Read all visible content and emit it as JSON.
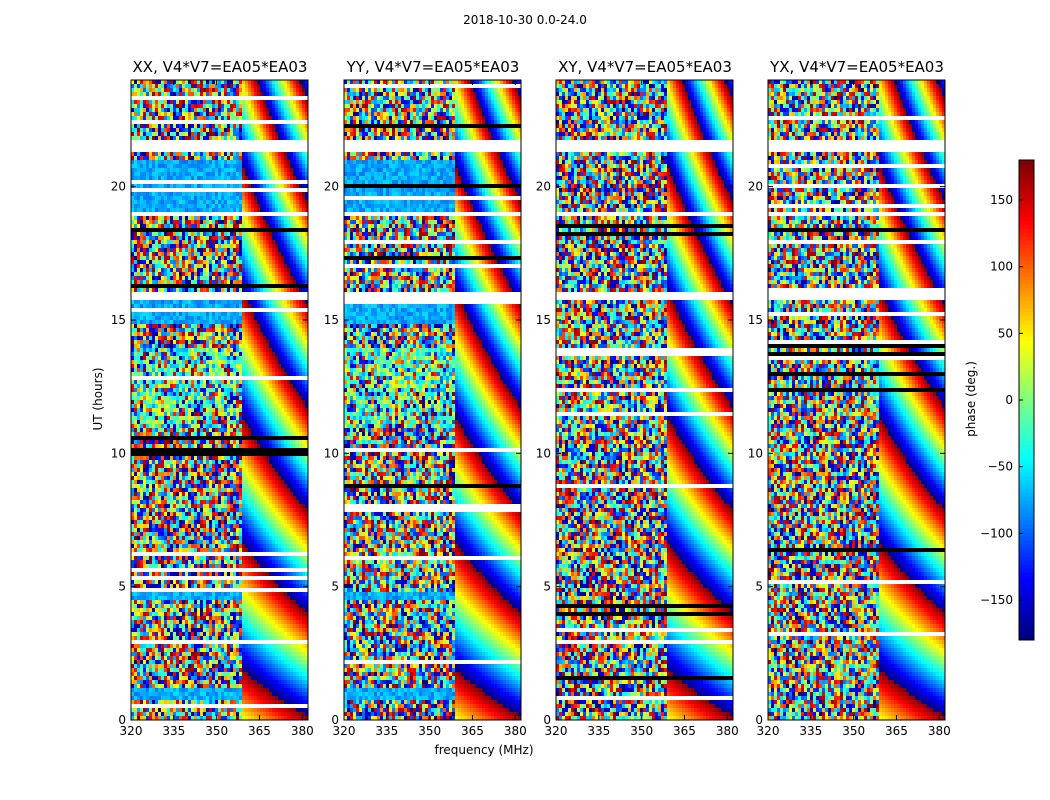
{
  "figure": {
    "title": "2018-10-30 0.0-24.0"
  },
  "chart_data": [
    {
      "type": "heatmap",
      "title": "XX, V4*V7=EA05*EA03",
      "xlabel": "frequency (MHz)",
      "ylabel": "UT (hours)",
      "xlim": [
        320,
        382
      ],
      "ylim": [
        0,
        24
      ],
      "xticks": [
        320,
        335,
        350,
        365,
        380
      ],
      "yticks": [
        0,
        5,
        10,
        15,
        20
      ],
      "value": "phase (deg.)",
      "range": [
        -180,
        180
      ],
      "coherent_region": {
        "freq": [
          320,
          358
        ],
        "ut_bands": [
          [
            19,
            21
          ],
          [
            14.8,
            16
          ],
          [
            0.8,
            1.2
          ],
          [
            4.5,
            4.8
          ]
        ],
        "phase_approx": -75
      },
      "fringe_region": {
        "freq": [
          358,
          382
        ]
      },
      "flagged_ut": [
        [
          21.3,
          21.8
        ],
        [
          18.95,
          19.05
        ],
        [
          15.8,
          16.0
        ]
      ]
    },
    {
      "type": "heatmap",
      "title": "YY, V4*V7=EA05*EA03",
      "xlabel": "frequency (MHz)",
      "ylabel": "",
      "xlim": [
        320,
        382
      ],
      "ylim": [
        0,
        24
      ],
      "xticks": [
        320,
        335,
        350,
        365,
        380
      ],
      "yticks": [
        0,
        5,
        10,
        15,
        20
      ],
      "value": "phase (deg.)",
      "range": [
        -180,
        180
      ],
      "coherent_region": {
        "freq": [
          320,
          358
        ],
        "ut_bands": [
          [
            19,
            21
          ],
          [
            14.8,
            16
          ],
          [
            0.8,
            1.2
          ],
          [
            4.5,
            4.8
          ]
        ],
        "phase_approx": -75
      },
      "fringe_region": {
        "freq": [
          358,
          382
        ]
      },
      "flagged_ut": [
        [
          21.3,
          21.8
        ],
        [
          18.95,
          19.05
        ],
        [
          15.8,
          16.0
        ]
      ]
    },
    {
      "type": "heatmap",
      "title": "XY, V4*V7=EA05*EA03",
      "xlabel": "",
      "ylabel": "",
      "xlim": [
        320,
        382
      ],
      "ylim": [
        0,
        24
      ],
      "xticks": [
        320,
        335,
        350,
        365,
        380
      ],
      "yticks": [
        0,
        5,
        10,
        15,
        20
      ],
      "value": "phase (deg.)",
      "range": [
        -180,
        180
      ],
      "coherent_region": null,
      "fringe_region": {
        "freq": [
          358,
          382
        ]
      },
      "flagged_ut": [
        [
          21.3,
          21.8
        ],
        [
          18.95,
          19.05
        ],
        [
          15.8,
          16.0
        ]
      ]
    },
    {
      "type": "heatmap",
      "title": "YX, V4*V7=EA05*EA03",
      "xlabel": "",
      "ylabel": "",
      "xlim": [
        320,
        382
      ],
      "ylim": [
        0,
        24
      ],
      "xticks": [
        320,
        335,
        350,
        365,
        380
      ],
      "yticks": [
        0,
        5,
        10,
        15,
        20
      ],
      "value": "phase (deg.)",
      "range": [
        -180,
        180
      ],
      "coherent_region": null,
      "fringe_region": {
        "freq": [
          358,
          382
        ]
      },
      "flagged_ut": [
        [
          21.3,
          21.8
        ],
        [
          18.95,
          19.05
        ],
        [
          15.8,
          16.0
        ]
      ]
    }
  ],
  "colorbar": {
    "label": "phase (deg.)",
    "range": [
      -180,
      180
    ],
    "ticks": [
      150,
      100,
      50,
      0,
      -50,
      -100,
      -150
    ],
    "tick_labels": [
      "150",
      "100",
      "50",
      "0",
      "−50",
      "−100",
      "−150"
    ],
    "colormap": "jet",
    "stops": [
      "#00007f",
      "#0000ff",
      "#007fff",
      "#00ffff",
      "#7fff7f",
      "#ffff00",
      "#ff7f00",
      "#ff0000",
      "#7f0000"
    ]
  }
}
